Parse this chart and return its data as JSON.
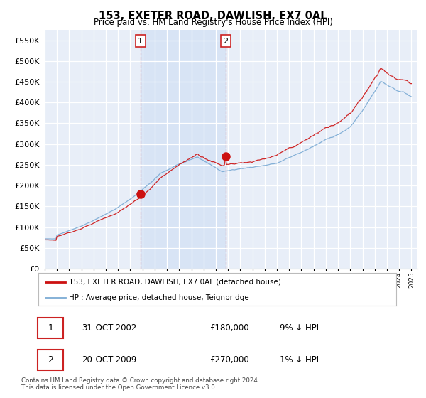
{
  "title": "153, EXETER ROAD, DAWLISH, EX7 0AL",
  "subtitle": "Price paid vs. HM Land Registry's House Price Index (HPI)",
  "ylim": [
    0,
    575000
  ],
  "yticks": [
    0,
    50000,
    100000,
    150000,
    200000,
    250000,
    300000,
    350000,
    400000,
    450000,
    500000,
    550000
  ],
  "xlim_start": 1995.0,
  "xlim_end": 2025.5,
  "plot_bg": "#e8eef8",
  "plot_bg_highlight": "#d8e4f5",
  "grid_color": "#ffffff",
  "hpi_color": "#7aaad4",
  "price_color": "#cc1111",
  "sale1_x": 2002.83,
  "sale1_y": 180000,
  "sale2_x": 2009.8,
  "sale2_y": 270000,
  "legend_entries": [
    "153, EXETER ROAD, DAWLISH, EX7 0AL (detached house)",
    "HPI: Average price, detached house, Teignbridge"
  ],
  "table_rows": [
    {
      "num": "1",
      "date": "31-OCT-2002",
      "price": "£180,000",
      "hpi": "9% ↓ HPI"
    },
    {
      "num": "2",
      "date": "20-OCT-2009",
      "price": "£270,000",
      "hpi": "1% ↓ HPI"
    }
  ],
  "footnote": "Contains HM Land Registry data © Crown copyright and database right 2024.\nThis data is licensed under the Open Government Licence v3.0."
}
